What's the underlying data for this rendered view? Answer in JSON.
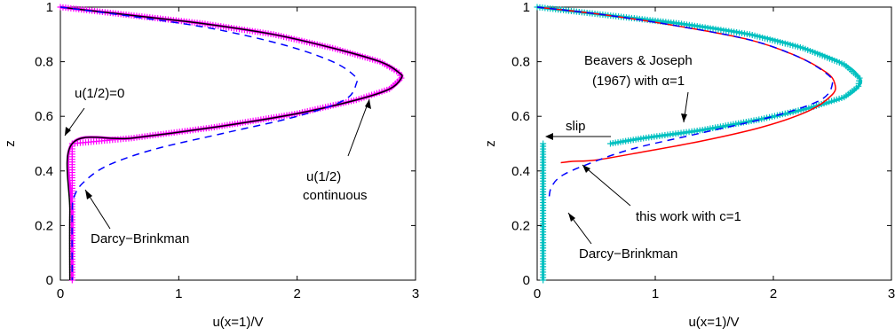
{
  "colors": {
    "dashed": "#0000ff",
    "solid_black": "#000000",
    "magenta_markers": "#ff00ff",
    "cyan_markers": "#00c0c0",
    "red_line": "#ff0000"
  },
  "chart_data": [
    {
      "type": "line",
      "xlabel": "u(x=1)/V",
      "ylabel": "z",
      "xlim": [
        0,
        3
      ],
      "ylim": [
        0,
        1
      ],
      "xticks": [
        "0",
        "1",
        "2",
        "3"
      ],
      "yticks": [
        "0",
        "0.2",
        "0.4",
        "0.6",
        "0.8",
        "1"
      ],
      "grid": false,
      "annotations": [
        "u(1/2)=0",
        "u(1/2)",
        "continuous",
        "Darcy−Brinkman"
      ],
      "series": [
        {
          "style": "magenta plus markers",
          "x": [
            0.0,
            0.6,
            1.2,
            1.8,
            2.3,
            2.7,
            2.86,
            2.88,
            2.78,
            2.5,
            2.0,
            1.3,
            0.6,
            0.1,
            0.1,
            0.1
          ],
          "y": [
            1.0,
            0.97,
            0.94,
            0.9,
            0.85,
            0.8,
            0.76,
            0.74,
            0.7,
            0.66,
            0.61,
            0.56,
            0.52,
            0.5,
            0.25,
            0.0
          ]
        },
        {
          "style": "black solid",
          "x": [
            0.0,
            0.6,
            1.2,
            1.8,
            2.3,
            2.7,
            2.86,
            2.88,
            2.78,
            2.5,
            2.0,
            1.3,
            0.6,
            0.1,
            0.08,
            0.08
          ],
          "y": [
            1.0,
            0.97,
            0.94,
            0.9,
            0.85,
            0.8,
            0.76,
            0.74,
            0.7,
            0.66,
            0.61,
            0.56,
            0.52,
            0.5,
            0.25,
            0.0
          ]
        },
        {
          "style": "blue dashed",
          "x": [
            0.0,
            0.7,
            1.3,
            1.9,
            2.3,
            2.48,
            2.5,
            2.4,
            2.0,
            1.4,
            0.8,
            0.4,
            0.2,
            0.12,
            0.1,
            0.1
          ],
          "y": [
            1.0,
            0.96,
            0.92,
            0.86,
            0.8,
            0.75,
            0.72,
            0.66,
            0.6,
            0.54,
            0.48,
            0.42,
            0.36,
            0.31,
            0.25,
            0.0
          ]
        }
      ]
    },
    {
      "type": "line",
      "xlabel": "u(x=1)/V",
      "ylabel": "z",
      "xlim": [
        0,
        3
      ],
      "ylim": [
        0,
        1
      ],
      "xticks": [
        "0",
        "1",
        "2",
        "3"
      ],
      "yticks": [
        "0",
        "0.2",
        "0.4",
        "0.6",
        "0.8",
        "1"
      ],
      "grid": false,
      "annotations": [
        "Beavers & Joseph",
        "(1967) with α=1",
        "slip",
        "this work with c=1",
        "Darcy−Brinkman"
      ],
      "series": [
        {
          "style": "cyan plus markers",
          "x": [
            0.0,
            0.6,
            1.2,
            1.8,
            2.25,
            2.6,
            2.73,
            2.72,
            2.6,
            2.3,
            1.9,
            1.4,
            0.9,
            0.62
          ],
          "y": [
            1.0,
            0.97,
            0.94,
            0.9,
            0.85,
            0.79,
            0.74,
            0.71,
            0.67,
            0.63,
            0.59,
            0.55,
            0.52,
            0.5
          ]
        },
        {
          "style": "cyan plus markers",
          "x": [
            0.05,
            0.05
          ],
          "y": [
            0.5,
            0.0
          ]
        },
        {
          "style": "red solid",
          "x": [
            0.0,
            0.6,
            1.2,
            1.8,
            2.2,
            2.45,
            2.52,
            2.5,
            2.3,
            1.9,
            1.4,
            0.9,
            0.5,
            0.3,
            0.2
          ],
          "y": [
            1.0,
            0.97,
            0.93,
            0.88,
            0.82,
            0.76,
            0.72,
            0.68,
            0.62,
            0.56,
            0.51,
            0.47,
            0.44,
            0.435,
            0.43
          ]
        },
        {
          "style": "blue dashed",
          "x": [
            0.0,
            0.6,
            1.2,
            1.8,
            2.2,
            2.44,
            2.5,
            2.4,
            2.0,
            1.4,
            0.8,
            0.4,
            0.2,
            0.12,
            0.1
          ],
          "y": [
            1.0,
            0.97,
            0.93,
            0.88,
            0.82,
            0.76,
            0.72,
            0.66,
            0.6,
            0.54,
            0.48,
            0.42,
            0.38,
            0.34,
            0.3
          ]
        }
      ]
    }
  ]
}
